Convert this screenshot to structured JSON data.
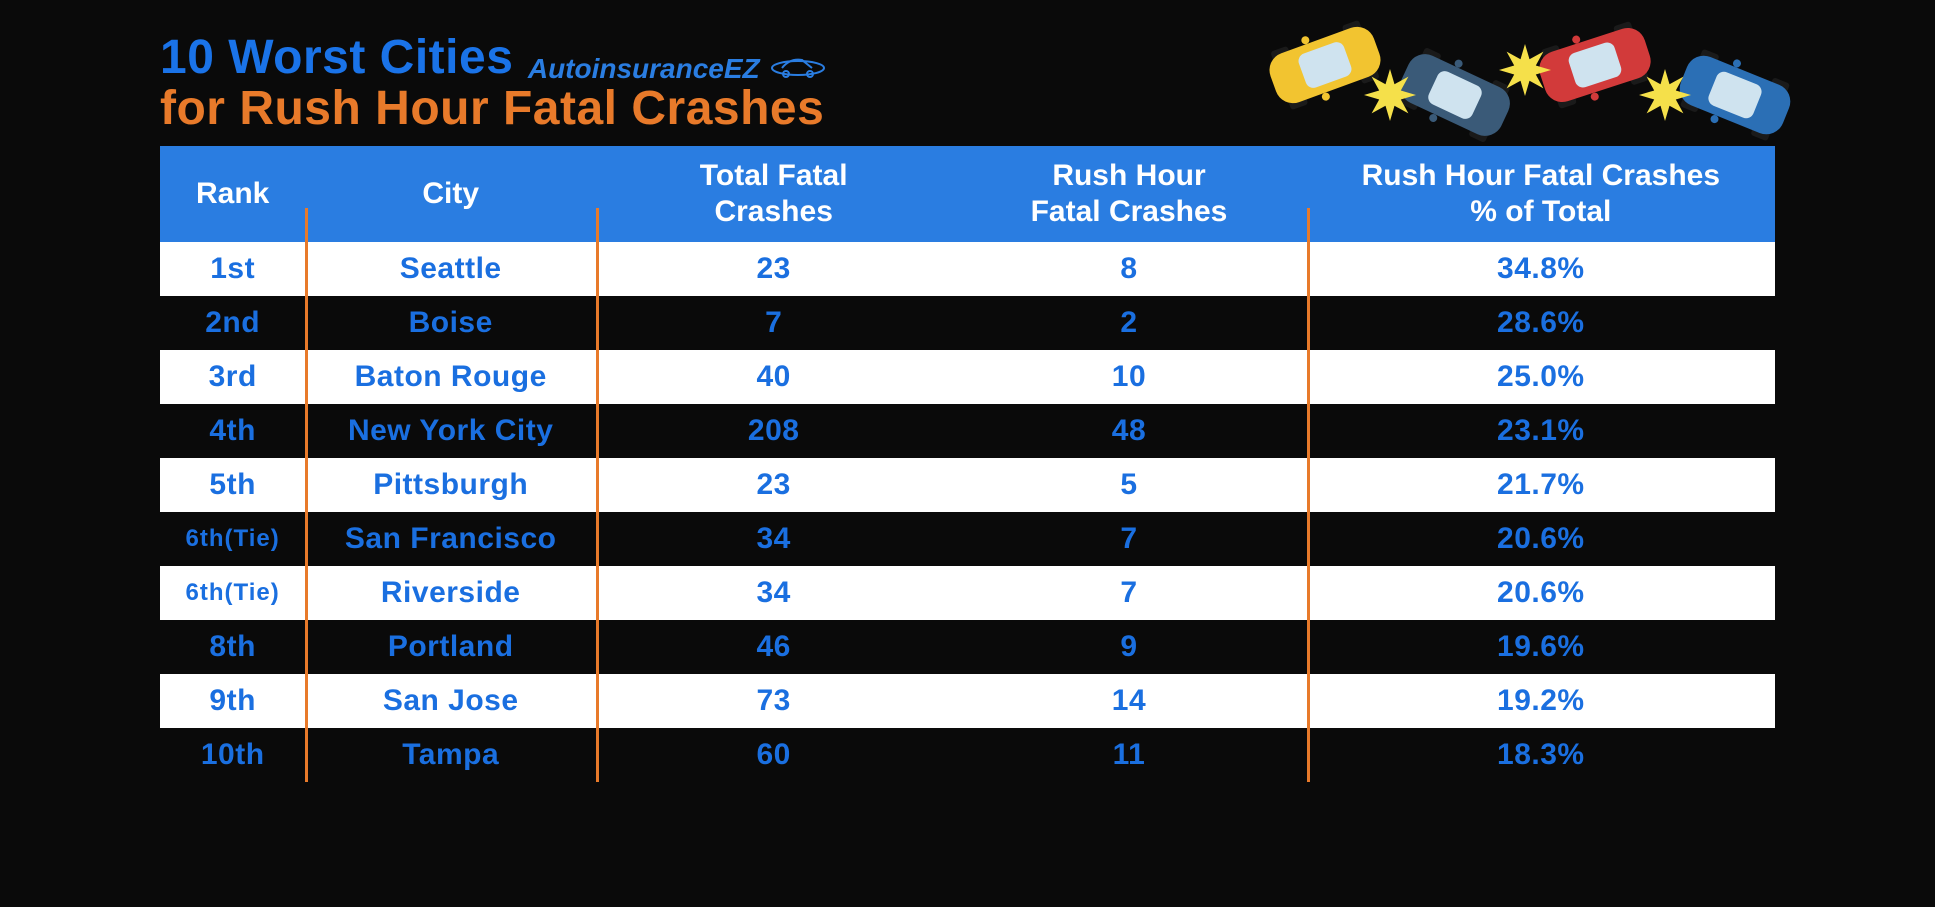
{
  "title": {
    "line1": "10 Worst Cities",
    "line2": "for Rush Hour Fatal Crashes",
    "line1_color": "#1a73e8",
    "line2_color": "#e87a2a",
    "fontsize": 48
  },
  "brand": {
    "text": "AutoinsuranceEZ",
    "color": "#2a7de1"
  },
  "illustration": {
    "cars": [
      {
        "color": "#f2c430",
        "rotation": -20
      },
      {
        "color": "#3a5a78",
        "rotation": 25
      },
      {
        "color": "#d23a3a",
        "rotation": -18
      },
      {
        "color": "#2b6fb5",
        "rotation": 22
      }
    ],
    "star_color": "#f5e04a"
  },
  "table": {
    "type": "table",
    "header_bg": "#2a7de1",
    "header_fg": "#ffffff",
    "row_odd_bg": "#ffffff",
    "row_even_bg": "#0a0a0a",
    "cell_fg": "#1a6fe0",
    "divider_color": "#e87a2a",
    "header_fontsize": 30,
    "cell_fontsize": 30,
    "columns": [
      {
        "key": "rank",
        "label": "Rank",
        "width_pct": 9
      },
      {
        "key": "city",
        "label": "City",
        "width_pct": 18
      },
      {
        "key": "total",
        "label": "Total Fatal\nCrashes",
        "width_pct": 22
      },
      {
        "key": "rush",
        "label": "Rush Hour\nFatal Crashes",
        "width_pct": 22
      },
      {
        "key": "pct",
        "label": "Rush Hour Fatal Crashes\n% of Total",
        "width_pct": 29
      }
    ],
    "rows": [
      {
        "rank": "1st",
        "city": "Seattle",
        "total": "23",
        "rush": "8",
        "pct": "34.8%"
      },
      {
        "rank": "2nd",
        "city": "Boise",
        "total": "7",
        "rush": "2",
        "pct": "28.6%"
      },
      {
        "rank": "3rd",
        "city": "Baton Rouge",
        "total": "40",
        "rush": "10",
        "pct": "25.0%"
      },
      {
        "rank": "4th",
        "city": "New York City",
        "total": "208",
        "rush": "48",
        "pct": "23.1%"
      },
      {
        "rank": "5th",
        "city": "Pittsburgh",
        "total": "23",
        "rush": "5",
        "pct": "21.7%"
      },
      {
        "rank": "6th(Tie)",
        "city": "San Francisco",
        "total": "34",
        "rush": "7",
        "pct": "20.6%",
        "rank_small": true
      },
      {
        "rank": "6th(Tie)",
        "city": "Riverside",
        "total": "34",
        "rush": "7",
        "pct": "20.6%",
        "rank_small": true
      },
      {
        "rank": "8th",
        "city": "Portland",
        "total": "46",
        "rush": "9",
        "pct": "19.6%"
      },
      {
        "rank": "9th",
        "city": "San Jose",
        "total": "73",
        "rush": "14",
        "pct": "19.2%"
      },
      {
        "rank": "10th",
        "city": "Tampa",
        "total": "60",
        "rush": "11",
        "pct": "18.3%"
      }
    ],
    "divider_positions_pct": [
      9,
      27,
      71
    ]
  }
}
